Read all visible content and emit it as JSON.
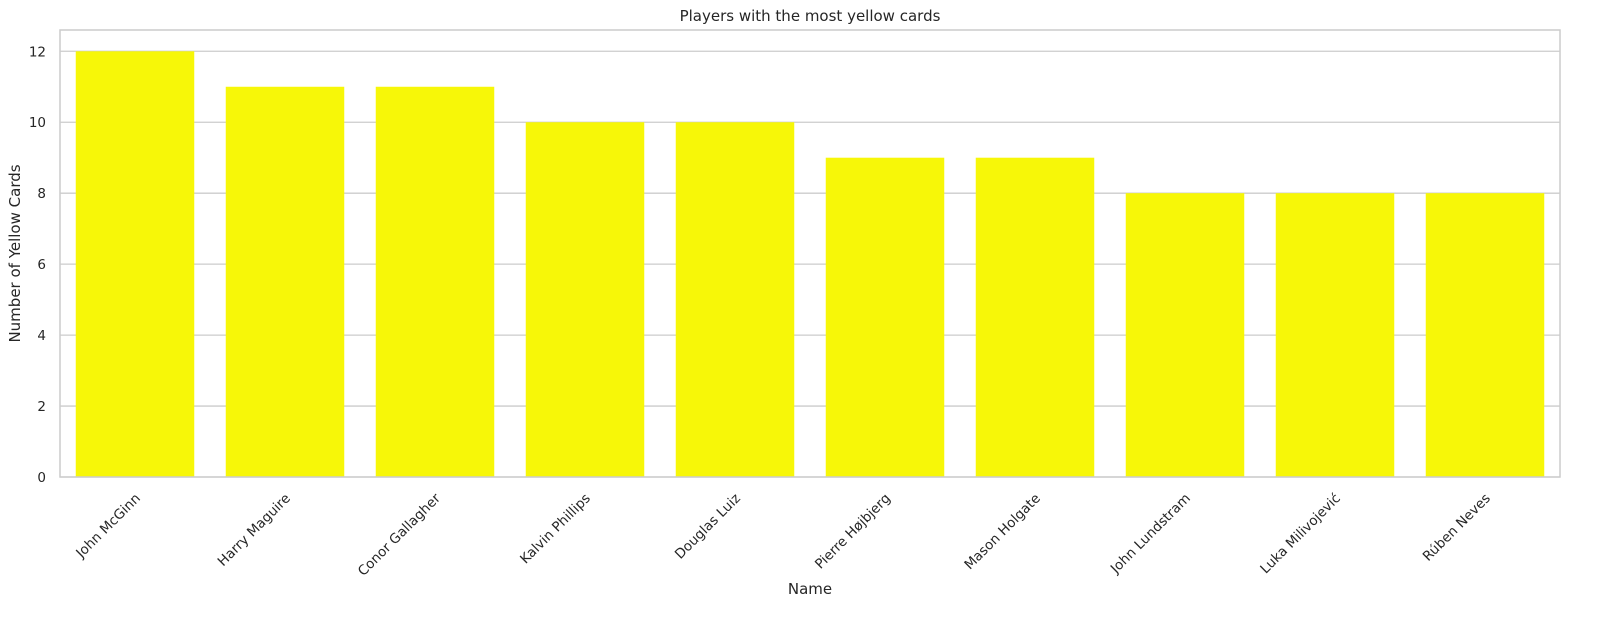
{
  "chart_data": {
    "type": "bar",
    "title": "Players with the most yellow cards",
    "xlabel": "Name",
    "ylabel": "Number of Yellow Cards",
    "categories": [
      "John McGinn",
      "Harry Maguire",
      "Conor Gallagher",
      "Kalvin Phillips",
      "Douglas Luiz",
      "Pierre Højbjerg",
      "Mason Holgate",
      "John Lundstram",
      "Luka Milivojević",
      "Rúben Neves"
    ],
    "values": [
      12,
      11,
      11,
      10,
      10,
      9,
      9,
      8,
      8,
      8
    ],
    "ylim": [
      0,
      12.6
    ],
    "yticks": [
      0,
      2,
      4,
      6,
      8,
      10,
      12
    ],
    "grid": "horizontal",
    "bar_color": "#f7f708",
    "grid_color": "#cccccc",
    "axes_edge_color": "#cccccc",
    "xtick_rotation": 45
  }
}
